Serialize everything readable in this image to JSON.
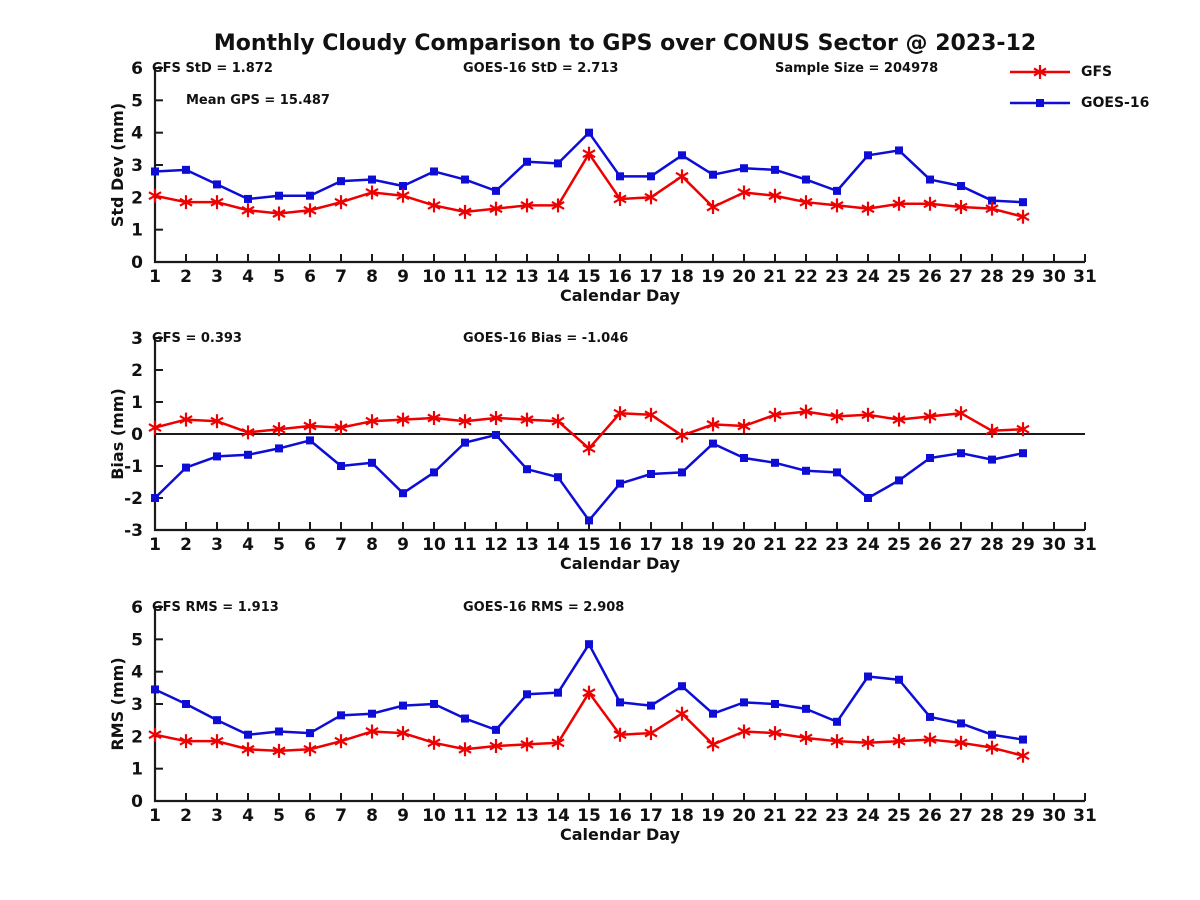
{
  "title": "Monthly Cloudy Comparison to GPS over CONUS Sector @ 2023-12",
  "colors": {
    "gfs": "#ee0000",
    "goes16": "#0d0dd6",
    "axis": "#1a1a1a",
    "zero_line": "#1a1a1a",
    "background": "#ffffff"
  },
  "legend": {
    "items": [
      {
        "label": "GFS",
        "color_key": "gfs",
        "marker": "star"
      },
      {
        "label": "GOES-16",
        "color_key": "goes16",
        "marker": "square"
      }
    ]
  },
  "chart_data": [
    {
      "type": "line",
      "name": "std-dev",
      "ylabel": "Std Dev (mm)",
      "xlabel": "Calendar Day",
      "ylim": [
        0,
        6
      ],
      "yticks": [
        0,
        1,
        2,
        3,
        4,
        5,
        6
      ],
      "xlim": [
        1,
        31
      ],
      "xticks": [
        1,
        2,
        3,
        4,
        5,
        6,
        7,
        8,
        9,
        10,
        11,
        12,
        13,
        14,
        15,
        16,
        17,
        18,
        19,
        20,
        21,
        22,
        23,
        24,
        25,
        26,
        27,
        28,
        29,
        30,
        31
      ],
      "zero_line": false,
      "annotations": [
        {
          "text": "GFS StD = 1.872"
        },
        {
          "text": "GOES-16 StD = 2.713"
        },
        {
          "text": "Sample Size = 204978"
        },
        {
          "text": "Mean GPS = 15.487"
        }
      ],
      "x": [
        1,
        2,
        3,
        4,
        5,
        6,
        7,
        8,
        9,
        10,
        11,
        12,
        13,
        14,
        15,
        16,
        17,
        18,
        19,
        20,
        21,
        22,
        23,
        24,
        25,
        26,
        27,
        28,
        29
      ],
      "series": [
        {
          "name": "GFS",
          "color_key": "gfs",
          "marker": "star",
          "values": [
            2.05,
            1.85,
            1.85,
            1.6,
            1.5,
            1.6,
            1.85,
            2.15,
            2.05,
            1.75,
            1.55,
            1.65,
            1.75,
            1.75,
            3.35,
            1.95,
            2.0,
            2.65,
            1.7,
            2.15,
            2.05,
            1.85,
            1.75,
            1.65,
            1.8,
            1.8,
            1.7,
            1.65,
            1.4
          ]
        },
        {
          "name": "GOES-16",
          "color_key": "goes16",
          "marker": "square",
          "values": [
            2.8,
            2.85,
            2.4,
            1.95,
            2.05,
            2.05,
            2.5,
            2.55,
            2.35,
            2.8,
            2.55,
            2.2,
            3.1,
            3.05,
            4.0,
            2.65,
            2.65,
            3.3,
            2.7,
            2.9,
            2.85,
            2.55,
            2.2,
            3.3,
            3.45,
            2.55,
            2.35,
            1.9,
            1.85
          ]
        }
      ]
    },
    {
      "type": "line",
      "name": "bias",
      "ylabel": "Bias (mm)",
      "xlabel": "Calendar Day",
      "ylim": [
        -3,
        3
      ],
      "yticks": [
        -3,
        -2,
        -1,
        0,
        1,
        2,
        3
      ],
      "xlim": [
        1,
        31
      ],
      "xticks": [
        1,
        2,
        3,
        4,
        5,
        6,
        7,
        8,
        9,
        10,
        11,
        12,
        13,
        14,
        15,
        16,
        17,
        18,
        19,
        20,
        21,
        22,
        23,
        24,
        25,
        26,
        27,
        28,
        29,
        30,
        31
      ],
      "zero_line": true,
      "annotations": [
        {
          "text": "GFS = 0.393"
        },
        {
          "text": "GOES-16 Bias = -1.046"
        }
      ],
      "x": [
        1,
        2,
        3,
        4,
        5,
        6,
        7,
        8,
        9,
        10,
        11,
        12,
        13,
        14,
        15,
        16,
        17,
        18,
        19,
        20,
        21,
        22,
        23,
        24,
        25,
        26,
        27,
        28,
        29
      ],
      "series": [
        {
          "name": "GFS",
          "color_key": "gfs",
          "marker": "star",
          "values": [
            0.2,
            0.45,
            0.4,
            0.05,
            0.15,
            0.25,
            0.2,
            0.4,
            0.45,
            0.5,
            0.4,
            0.5,
            0.45,
            0.4,
            -0.45,
            0.65,
            0.6,
            -0.05,
            0.3,
            0.25,
            0.6,
            0.7,
            0.55,
            0.6,
            0.45,
            0.55,
            0.65,
            0.1,
            0.15
          ]
        },
        {
          "name": "GOES-16",
          "color_key": "goes16",
          "marker": "square",
          "values": [
            -2.0,
            -1.05,
            -0.7,
            -0.65,
            -0.45,
            -0.2,
            -1.0,
            -0.9,
            -1.85,
            -1.2,
            -0.27,
            -0.03,
            -1.1,
            -1.35,
            -2.7,
            -1.55,
            -1.25,
            -1.2,
            -0.3,
            -0.75,
            -0.9,
            -1.15,
            -1.2,
            -2.0,
            -1.45,
            -0.75,
            -0.6,
            -0.8,
            -0.6
          ]
        }
      ]
    },
    {
      "type": "line",
      "name": "rms",
      "ylabel": "RMS (mm)",
      "xlabel": "Calendar Day",
      "ylim": [
        0,
        6
      ],
      "yticks": [
        0,
        1,
        2,
        3,
        4,
        5,
        6
      ],
      "xlim": [
        1,
        31
      ],
      "xticks": [
        1,
        2,
        3,
        4,
        5,
        6,
        7,
        8,
        9,
        10,
        11,
        12,
        13,
        14,
        15,
        16,
        17,
        18,
        19,
        20,
        21,
        22,
        23,
        24,
        25,
        26,
        27,
        28,
        29,
        30,
        31
      ],
      "zero_line": false,
      "annotations": [
        {
          "text": "GFS RMS = 1.913"
        },
        {
          "text": "GOES-16 RMS = 2.908"
        }
      ],
      "x": [
        1,
        2,
        3,
        4,
        5,
        6,
        7,
        8,
        9,
        10,
        11,
        12,
        13,
        14,
        15,
        16,
        17,
        18,
        19,
        20,
        21,
        22,
        23,
        24,
        25,
        26,
        27,
        28,
        29
      ],
      "series": [
        {
          "name": "GFS",
          "color_key": "gfs",
          "marker": "star",
          "values": [
            2.05,
            1.85,
            1.85,
            1.6,
            1.55,
            1.6,
            1.85,
            2.15,
            2.1,
            1.8,
            1.6,
            1.7,
            1.75,
            1.8,
            3.35,
            2.05,
            2.1,
            2.7,
            1.75,
            2.15,
            2.1,
            1.95,
            1.85,
            1.8,
            1.85,
            1.9,
            1.8,
            1.65,
            1.4
          ]
        },
        {
          "name": "GOES-16",
          "color_key": "goes16",
          "marker": "square",
          "values": [
            3.45,
            3.0,
            2.5,
            2.05,
            2.15,
            2.1,
            2.65,
            2.7,
            2.95,
            3.0,
            2.55,
            2.2,
            3.3,
            3.35,
            4.85,
            3.05,
            2.95,
            3.55,
            2.7,
            3.05,
            3.0,
            2.85,
            2.45,
            3.85,
            3.75,
            2.6,
            2.4,
            2.05,
            1.9
          ]
        }
      ]
    }
  ]
}
